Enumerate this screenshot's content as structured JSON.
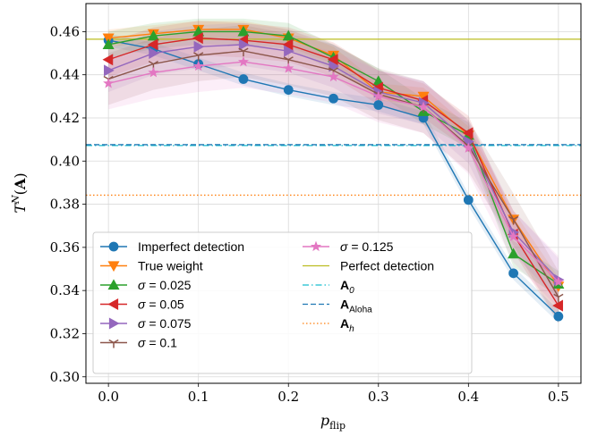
{
  "chart_data": {
    "type": "line",
    "xlabel": "p_flip",
    "ylabel": "T^N(A)",
    "xlim": [
      -0.025,
      0.525
    ],
    "ylim": [
      0.297,
      0.473
    ],
    "grid": true,
    "legend_position": "lower-left",
    "legend_columns": 2,
    "x": [
      0.0,
      0.05,
      0.1,
      0.15,
      0.2,
      0.25,
      0.3,
      0.35,
      0.4,
      0.45,
      0.5
    ],
    "x_ticks": [
      {
        "value": 0.0,
        "label": "0.0"
      },
      {
        "value": 0.1,
        "label": "0.1"
      },
      {
        "value": 0.2,
        "label": "0.2"
      },
      {
        "value": 0.3,
        "label": "0.3"
      },
      {
        "value": 0.4,
        "label": "0.4"
      },
      {
        "value": 0.5,
        "label": "0.5"
      }
    ],
    "y_ticks": [
      {
        "value": 0.3,
        "label": "0.30"
      },
      {
        "value": 0.32,
        "label": "0.32"
      },
      {
        "value": 0.34,
        "label": "0.34"
      },
      {
        "value": 0.36,
        "label": "0.36"
      },
      {
        "value": 0.38,
        "label": "0.38"
      },
      {
        "value": 0.4,
        "label": "0.40"
      },
      {
        "value": 0.42,
        "label": "0.42"
      },
      {
        "value": 0.44,
        "label": "0.44"
      },
      {
        "value": 0.46,
        "label": "0.46"
      }
    ],
    "series": [
      {
        "name": "Imperfect detection",
        "color": "#1f77b4",
        "marker": "circle",
        "band": 0.003,
        "values": [
          0.456,
          0.452,
          0.445,
          0.438,
          0.433,
          0.429,
          0.426,
          0.42,
          0.382,
          0.348,
          0.328
        ]
      },
      {
        "name": "True weight",
        "color": "#ff7f0e",
        "marker": "triangle-down",
        "band": 0.004,
        "values": [
          0.457,
          0.459,
          0.461,
          0.461,
          0.457,
          0.449,
          0.432,
          0.43,
          0.412,
          0.373,
          0.342
        ]
      },
      {
        "name": "σ = 0.025",
        "color": "#2ca02c",
        "marker": "triangle-up",
        "band": 0.006,
        "values": [
          0.454,
          0.458,
          0.46,
          0.46,
          0.458,
          0.448,
          0.437,
          0.423,
          0.412,
          0.357,
          0.343
        ]
      },
      {
        "name": "σ = 0.05",
        "color": "#d62728",
        "marker": "triangle-left",
        "band": 0.008,
        "values": [
          0.447,
          0.454,
          0.457,
          0.456,
          0.454,
          0.447,
          0.434,
          0.428,
          0.413,
          0.366,
          0.333
        ]
      },
      {
        "name": "σ = 0.075",
        "color": "#9467bd",
        "marker": "triangle-right",
        "band": 0.01,
        "values": [
          0.442,
          0.45,
          0.453,
          0.454,
          0.451,
          0.444,
          0.432,
          0.427,
          0.409,
          0.367,
          0.345
        ]
      },
      {
        "name": "σ = 0.1",
        "color": "#8c564b",
        "marker": "tri-down",
        "band": 0.012,
        "values": [
          0.438,
          0.445,
          0.449,
          0.451,
          0.447,
          0.442,
          0.431,
          0.425,
          0.407,
          0.373,
          0.337
        ]
      },
      {
        "name": "σ = 0.125",
        "color": "#e377c2",
        "marker": "star",
        "band": 0.012,
        "values": [
          0.436,
          0.441,
          0.444,
          0.446,
          0.443,
          0.439,
          0.43,
          0.425,
          0.406,
          0.365,
          0.344
        ]
      }
    ],
    "reference_lines": [
      {
        "name": "Perfect detection",
        "color": "#bcbd22",
        "style": "solid",
        "value": 0.4565
      },
      {
        "name": "A_0",
        "color": "#17becf",
        "style": "dashdot",
        "value": 0.4072
      },
      {
        "name": "A_Aloha",
        "color": "#1f77b4",
        "style": "dashed",
        "value": 0.4076
      },
      {
        "name": "A_h",
        "color": "#ff7f0e",
        "style": "dotted",
        "value": 0.3842
      }
    ]
  }
}
